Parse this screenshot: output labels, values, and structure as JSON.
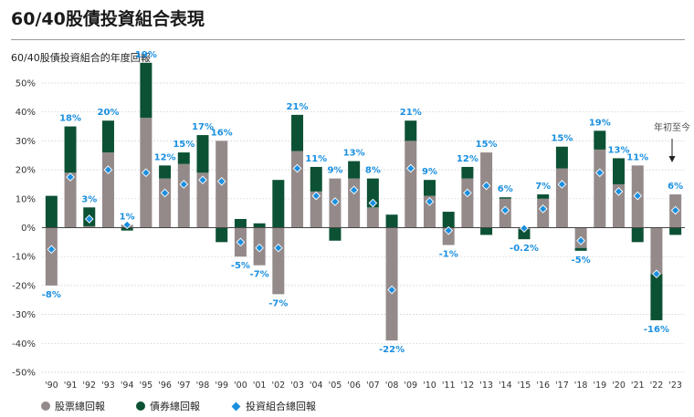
{
  "title": "60/40股債投資組合表現",
  "subtitle": "60/40股債投資組合的年度回報",
  "ytd_note": "年初至今",
  "colors": {
    "stock": "#948a8a",
    "bond": "#0c5134",
    "portfolio": "#1a8fe0",
    "label": "#1a8fe0"
  },
  "legend": {
    "stock": "股票總回報",
    "bond": "債券總回報",
    "portfolio": "投資組合總回報"
  },
  "chart_data": {
    "type": "bar",
    "ylim": [
      -50,
      50
    ],
    "ytick_labels": [
      "50%",
      "40%",
      "30%",
      "20%",
      "10%",
      "0%",
      "-10%",
      "-20%",
      "-30%",
      "-40%",
      "-50%"
    ],
    "categories": [
      "'90",
      "'91",
      "'92",
      "'93",
      "'94",
      "'95",
      "'96",
      "'97",
      "'98",
      "'99",
      "'00",
      "'01",
      "'02",
      "'03",
      "'04",
      "'05",
      "'06",
      "'07",
      "'08",
      "'09",
      "'10",
      "'11",
      "'12",
      "'13",
      "'14",
      "'15",
      "'16",
      "'17",
      "'18",
      "'19",
      "'20",
      "'21",
      "'22",
      "'23"
    ],
    "series": [
      {
        "name": "股票總回報",
        "values": [
          -20,
          19,
          0.5,
          26,
          1,
          38,
          17,
          22,
          19,
          30,
          -10,
          -13,
          -23,
          26.5,
          12.5,
          17,
          17,
          7,
          -39,
          30,
          11,
          -6,
          17,
          26,
          10,
          -0.5,
          10,
          20.5,
          -7,
          27,
          15,
          21.5,
          -16,
          11.5
        ]
      },
      {
        "name": "債券總回報",
        "values": [
          11,
          16,
          6.5,
          11,
          -1,
          19,
          4.5,
          4,
          13,
          -5,
          3,
          1.5,
          16.5,
          12.5,
          8.5,
          -4.5,
          6,
          10,
          4.5,
          7,
          5.5,
          5.5,
          4,
          -2.5,
          0.5,
          -3.5,
          1.5,
          7.5,
          -1,
          6.5,
          9,
          -5,
          -16,
          -2.5
        ]
      }
    ],
    "portfolio_values": [
      -7.5,
      17.5,
      3,
      20,
      1,
      19,
      12,
      15,
      16.5,
      16,
      -5,
      -7,
      -7,
      20.5,
      11,
      9,
      13,
      8.5,
      -21.5,
      20.5,
      9,
      -1,
      12,
      14.5,
      6,
      -0.2,
      6.5,
      15,
      -4.5,
      19,
      12.5,
      11,
      -16,
      6
    ],
    "data_labels": [
      "-8%",
      "18%",
      "3%",
      "20%",
      "1%",
      "19%",
      "12%",
      "15%",
      "17%",
      "16%",
      "-5%",
      "-7%",
      "-7%",
      "21%",
      "11%",
      "9%",
      "13%",
      "8%",
      "-22%",
      "21%",
      "9%",
      "-1%",
      "12%",
      "15%",
      "6%",
      "-0.2%",
      "7%",
      "15%",
      "-5%",
      "19%",
      "13%",
      "11%",
      "-16%",
      "6%"
    ]
  }
}
